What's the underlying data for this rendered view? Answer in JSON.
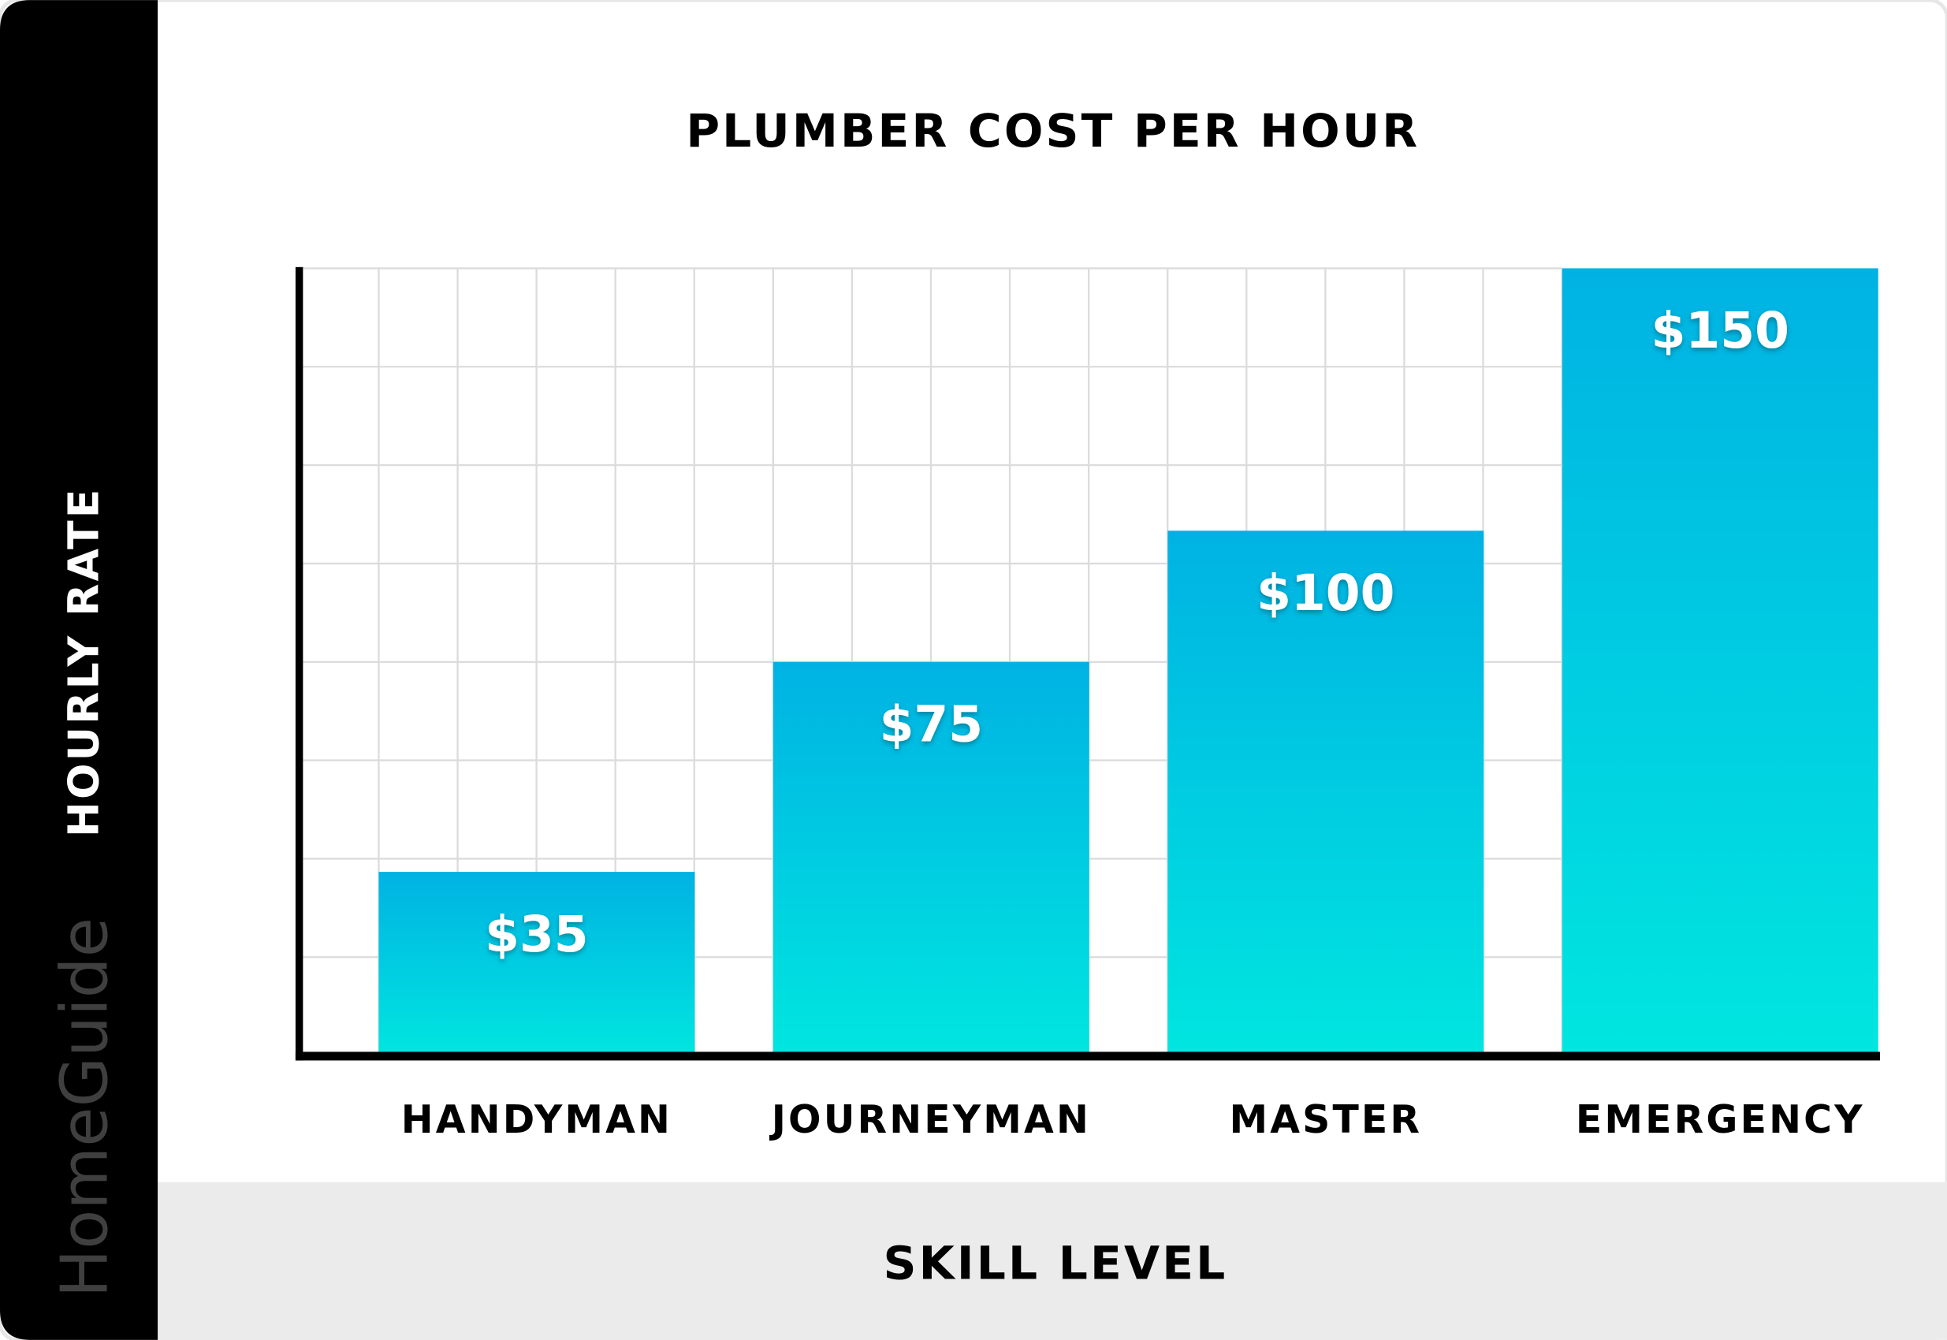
{
  "brand": {
    "logo_text": "HomeGuide"
  },
  "colors": {
    "bar_top": "#00b2e3",
    "bar_bottom": "#00e6e0",
    "sidebar": "#000000",
    "footer_band": "#ebebeb",
    "grid": "#dcdcdc"
  },
  "chart_data": {
    "type": "bar",
    "title": "PLUMBER COST PER HOUR",
    "xlabel": "SKILL LEVEL",
    "ylabel": "HOURLY RATE",
    "categories": [
      "HANDYMAN",
      "JOURNEYMAN",
      "MASTER",
      "EMERGENCY"
    ],
    "values": [
      35,
      75,
      100,
      150
    ],
    "data_labels": [
      "$35",
      "$75",
      "$100",
      "$150"
    ],
    "ylim": [
      0,
      150
    ],
    "grid": true,
    "legend": "none"
  }
}
